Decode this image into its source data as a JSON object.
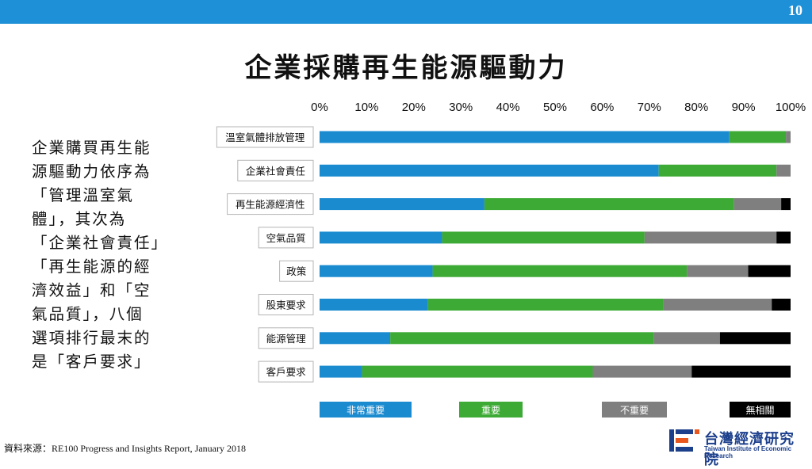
{
  "header": {
    "page_number": "10"
  },
  "title": "企業採購再生能源驅動力",
  "summary_lines": [
    "企業購買再生能",
    "源驅動力依序為",
    "「管理溫室氣",
    "體」，其次為",
    "「企業社會責任」",
    "「再生能源的經",
    "濟效益」和「空",
    "氣品質」，八個",
    "選項排行最末的",
    "是「客戶要求」"
  ],
  "source": "資料來源：RE100 Progress and Insights Report, January 2018",
  "logo": {
    "name": "台灣經濟研究院",
    "english": "Taiwan Institute of Economic Research"
  },
  "colors": {
    "topbar": "#1e90d8"
  },
  "chart_data": {
    "type": "bar",
    "orientation": "horizontal",
    "stacked": true,
    "xlim": [
      0,
      100
    ],
    "x_ticks": [
      "0%",
      "10%",
      "20%",
      "30%",
      "40%",
      "50%",
      "60%",
      "70%",
      "80%",
      "90%",
      "100%"
    ],
    "categories": [
      "溫室氣體排放管理",
      "企業社會責任",
      "再生能源經濟性",
      "空氣品質",
      "政策",
      "股東要求",
      "能源管理",
      "客戶要求"
    ],
    "series": [
      {
        "name": "非常重要",
        "color": "#1b8bd0",
        "values": [
          87,
          72,
          35,
          26,
          24,
          23,
          15,
          9
        ]
      },
      {
        "name": "重要",
        "color": "#3daa35",
        "values": [
          12,
          25,
          53,
          43,
          54,
          50,
          56,
          49
        ]
      },
      {
        "name": "不重要",
        "color": "#7f7f7f",
        "values": [
          1,
          3,
          10,
          28,
          13,
          23,
          14,
          21
        ]
      },
      {
        "name": "無相關",
        "color": "#000000",
        "values": [
          0,
          0,
          2,
          3,
          9,
          4,
          15,
          21
        ]
      }
    ]
  }
}
